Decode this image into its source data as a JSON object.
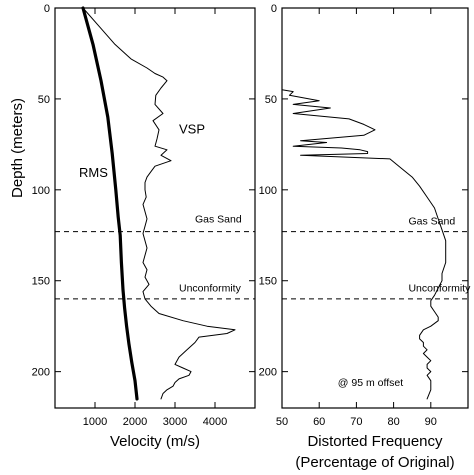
{
  "chart_data": [
    {
      "type": "line",
      "xlabel": "Velocity (m/s)",
      "ylabel": "Depth (meters)",
      "xlim": [
        0,
        5000
      ],
      "ylim": [
        0,
        220
      ],
      "y_inverted": true,
      "xticks": [
        {
          "value": 1000,
          "label": "1000"
        },
        {
          "value": 2000,
          "label": "2000"
        },
        {
          "value": 3000,
          "label": "3000"
        },
        {
          "value": 4000,
          "label": "4000"
        }
      ],
      "yticks": [
        {
          "value": 0,
          "label": "0"
        },
        {
          "value": 50,
          "label": "50"
        },
        {
          "value": 100,
          "label": "100"
        },
        {
          "value": 150,
          "label": "150"
        },
        {
          "value": 200,
          "label": "200"
        }
      ],
      "series": [
        {
          "name": "RMS",
          "style": "thick",
          "x": [
            700,
            950,
            1150,
            1320,
            1430,
            1520,
            1580,
            1630,
            1660,
            1700,
            1740,
            1790,
            1850,
            1920,
            2000,
            2050
          ],
          "y": [
            0,
            20,
            40,
            60,
            80,
            100,
            115,
            125,
            140,
            155,
            165,
            175,
            185,
            195,
            205,
            215
          ]
        },
        {
          "name": "VSP",
          "style": "thin",
          "x": [
            700,
            1100,
            1500,
            1900,
            2300,
            2500,
            2700,
            2800,
            2650,
            2520,
            2500,
            2700,
            2450,
            2600,
            2550,
            2500,
            2800,
            2650,
            2900,
            2500,
            2400,
            2300,
            2250,
            2250,
            2280,
            2200,
            2250,
            2300,
            2250,
            2200,
            2250,
            2300,
            2250,
            2200,
            2300,
            2250,
            2350,
            2200,
            2250,
            2400,
            2600,
            3200,
            3800,
            4500,
            4300,
            3600,
            3500,
            3300,
            3100,
            3000,
            3200,
            3400,
            3350,
            3100,
            3000,
            2950,
            2800,
            2700,
            2650
          ],
          "y": [
            0,
            10,
            20,
            28,
            33,
            36,
            38,
            40,
            44,
            48,
            53,
            58,
            62,
            67,
            72,
            76,
            78,
            81,
            84,
            87,
            90,
            93,
            96,
            100,
            104,
            108,
            112,
            116,
            120,
            124,
            128,
            132,
            136,
            140,
            144,
            148,
            152,
            156,
            160,
            164,
            168,
            172,
            175,
            177,
            179,
            181,
            184,
            188,
            192,
            196,
            198,
            200,
            202,
            204,
            206,
            208,
            210,
            212,
            215
          ]
        }
      ],
      "annotations": [
        {
          "text": "RMS",
          "x": 600,
          "y": 93
        },
        {
          "text": "VSP",
          "x": 3100,
          "y": 69
        },
        {
          "text": "Gas Sand",
          "x": 3500,
          "y": 118,
          "y_line": 123
        },
        {
          "text": "Unconformity",
          "x": 3100,
          "y": 156,
          "y_line": 160
        }
      ]
    },
    {
      "type": "line",
      "xlabel": "Distorted Frequency",
      "xlabel2": "(Percentage of Original)",
      "xlim": [
        50,
        100
      ],
      "ylim": [
        0,
        220
      ],
      "y_inverted": true,
      "xticks": [
        {
          "value": 50,
          "label": "50"
        },
        {
          "value": 60,
          "label": "60"
        },
        {
          "value": 70,
          "label": "70"
        },
        {
          "value": 80,
          "label": "80"
        },
        {
          "value": 90,
          "label": "90"
        }
      ],
      "yticks": [
        {
          "value": 0,
          "label": "0"
        },
        {
          "value": 50,
          "label": "50"
        },
        {
          "value": 100,
          "label": "100"
        },
        {
          "value": 150,
          "label": "150"
        },
        {
          "value": 200,
          "label": "200"
        }
      ],
      "series": [
        {
          "style": "thin",
          "x": [
            50,
            50,
            53,
            52,
            60,
            53,
            63,
            53,
            68,
            72,
            75,
            72,
            55,
            62,
            53,
            66,
            71,
            73,
            73,
            55,
            79,
            82,
            85,
            87,
            89,
            91,
            92,
            93,
            94,
            94,
            94,
            93,
            93,
            92,
            91,
            90,
            90,
            91,
            92,
            92,
            90,
            88,
            87,
            87,
            88,
            88,
            89,
            88,
            89,
            90,
            89,
            89,
            90,
            89,
            90,
            90,
            89
          ],
          "y": [
            0,
            45,
            46,
            48,
            51,
            53,
            55,
            58,
            61,
            64,
            67,
            70,
            73,
            74,
            76,
            77,
            78,
            79,
            80,
            81,
            83,
            88,
            93,
            98,
            104,
            110,
            116,
            122,
            128,
            134,
            140,
            146,
            150,
            154,
            158,
            161,
            164,
            167,
            170,
            172,
            175,
            177,
            180,
            182,
            184,
            186,
            188,
            190,
            192,
            194,
            196,
            198,
            200,
            202,
            205,
            210,
            215
          ]
        }
      ],
      "annotations": [
        {
          "text": "Gas Sand",
          "x": 84,
          "y": 119,
          "y_line": 123
        },
        {
          "text": "Unconformity",
          "x": 84,
          "y": 156,
          "y_line": 160
        },
        {
          "text": "@ 95 m offset",
          "x": 65,
          "y": 208
        }
      ]
    }
  ]
}
